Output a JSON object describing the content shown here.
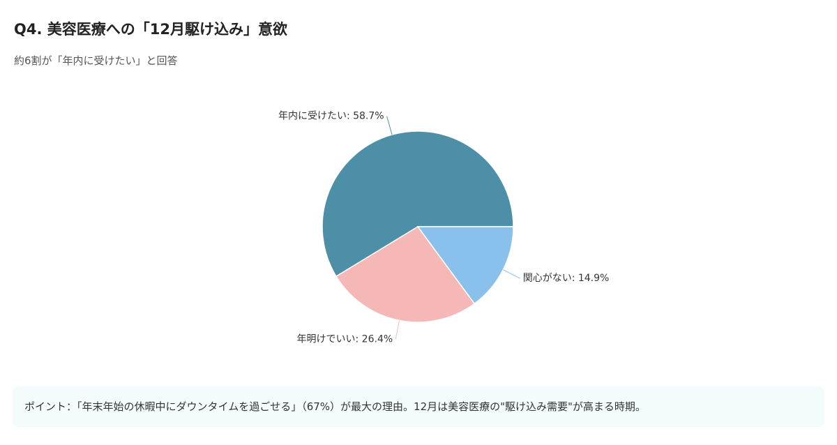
{
  "title": "Q4. 美容医療への「12月駆け込み」意欲",
  "subtitle": "約6割が「年内に受けたい」と回答",
  "chart_data": {
    "type": "pie",
    "values": [
      58.7,
      26.4,
      14.9
    ],
    "value_labels": [
      "年内に受けたい: 58.7%",
      "年明けでいい: 26.4%",
      "関心がない: 14.9%"
    ],
    "colors": [
      "#4e8fa8",
      "#f6b8b7",
      "#8ac1ec"
    ]
  },
  "note": "ポイント：「年末年始の休暇中にダウンタイムを過ごせる」（67%）が最大の理由。12月は美容医療の\"駆け込み需要\"が高まる時期。"
}
